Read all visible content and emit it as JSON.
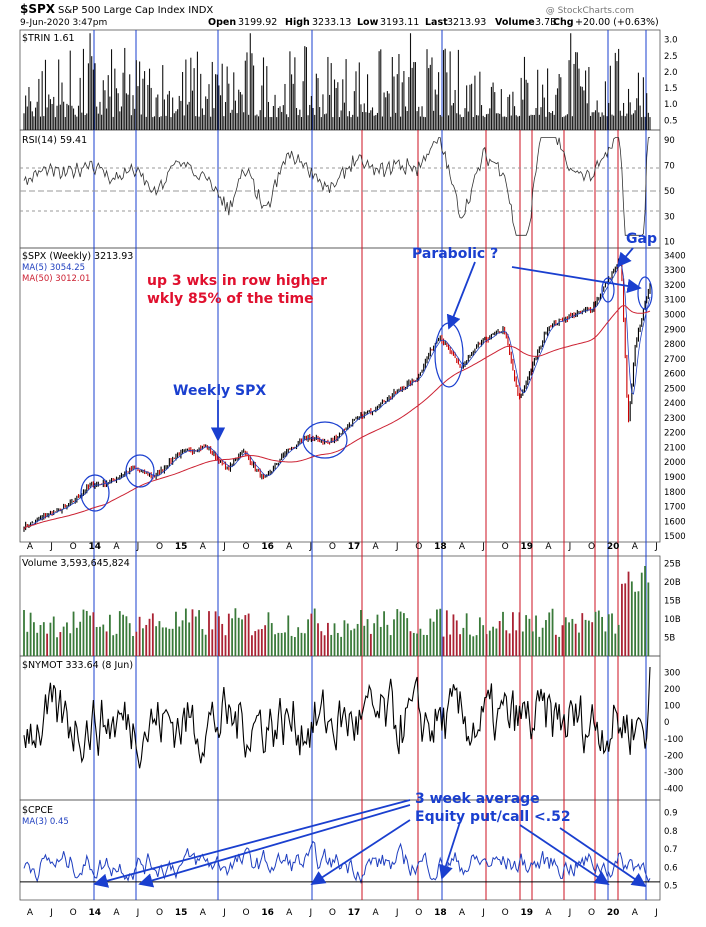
{
  "header": {
    "symbol": "$SPX",
    "name": "S&P 500 Large Cap Index INDX",
    "date": "9-Jun-2020 3:47pm",
    "open_label": "Open",
    "open": "3199.92",
    "high_label": "High",
    "high": "3233.13",
    "low_label": "Low",
    "low": "3193.11",
    "last_label": "Last",
    "last": "3213.93",
    "volume_label": "Volume",
    "volume": "3.7B",
    "chg_label": "Chg",
    "chg": "+20.00 (+0.63%)",
    "watermark": "@ StockCharts.com"
  },
  "panels": {
    "trin": {
      "label": "$TRIN 1.61"
    },
    "rsi": {
      "label": "RSI(14) 59.41"
    },
    "price": {
      "label": "$SPX (Weekly) 3213.93",
      "ma5": "MA(5) 3054.25",
      "ma50": "MA(50) 3012.01"
    },
    "volume": {
      "label": "Volume 3,593,645,824"
    },
    "nymot": {
      "label": "$NYMOT 333.64 (8 Jun)"
    },
    "cpce": {
      "label": "$CPCE",
      "ma3": "MA(3) 0.45"
    }
  },
  "annotations": {
    "stat1": "up 3 wks in row higher",
    "stat2": "wkly 85% of the time",
    "weekly": "Weekly SPX",
    "parabolic": "Parabolic ?",
    "gap": "Gap",
    "avg1": "3 week average",
    "avg2": "Equity put/call <.52"
  },
  "colors": {
    "price_up": "#000000",
    "price_down": "#cc0000",
    "ma5": "#1f3fbf",
    "ma50": "#cc2233",
    "annotation": "#1a3fcf",
    "stat_text": "#e0102e",
    "vline_blue": "#1a3fcf",
    "vline_red": "#cc1122",
    "vol_up": "#3a7a3a",
    "vol_down": "#aa2233"
  },
  "chart_data": {
    "type": "line",
    "x_tick_labels": [
      "A",
      "J",
      "O",
      "14",
      "A",
      "J",
      "O",
      "15",
      "A",
      "J",
      "O",
      "16",
      "A",
      "J",
      "O",
      "17",
      "A",
      "J",
      "O",
      "18",
      "A",
      "J",
      "O",
      "19",
      "A",
      "J",
      "O",
      "20",
      "A",
      "J"
    ],
    "panels": [
      {
        "name": "$TRIN",
        "y_ticks": [
          0.5,
          1.0,
          1.5,
          2.0,
          2.5,
          3.0
        ],
        "last": 1.61
      },
      {
        "name": "RSI(14)",
        "y_ticks": [
          10,
          30,
          50,
          70,
          90
        ],
        "last": 59.41
      },
      {
        "name": "$SPX (Weekly)",
        "y_ticks": [
          1500,
          1600,
          1700,
          1800,
          1900,
          2000,
          2100,
          2200,
          2300,
          2400,
          2500,
          2600,
          2700,
          2800,
          2900,
          3000,
          3100,
          3200,
          3300,
          3400
        ],
        "series": [
          {
            "name": "$SPX (Weekly)",
            "x": [
              "2013-04",
              "2013-07",
              "2013-10",
              "2014-01",
              "2014-04",
              "2014-07",
              "2014-10",
              "2015-01",
              "2015-05",
              "2015-08",
              "2015-10",
              "2016-01",
              "2016-04",
              "2016-07",
              "2016-10",
              "2017-01",
              "2017-04",
              "2017-07",
              "2017-10",
              "2018-01",
              "2018-04",
              "2018-07",
              "2018-10",
              "2018-12",
              "2019-04",
              "2019-07",
              "2019-10",
              "2020-02",
              "2020-03",
              "2020-04",
              "2020-06"
            ],
            "values": [
              1560,
              1640,
              1700,
              1840,
              1870,
              1960,
              1900,
              2050,
              2110,
              1950,
              2080,
              1880,
              2070,
              2170,
              2130,
              2270,
              2360,
              2470,
              2570,
              2860,
              2640,
              2820,
              2900,
              2420,
              2920,
              2990,
              3040,
              3380,
              2240,
              2800,
              3214
            ]
          },
          {
            "name": "MA(5)",
            "last": 3054.25
          },
          {
            "name": "MA(50)",
            "last": 3012.01
          }
        ]
      },
      {
        "name": "Volume",
        "y_ticks": [
          "5B",
          "10B",
          "15B",
          "20B",
          "25B"
        ],
        "last": 3593645824
      },
      {
        "name": "$NYMOT",
        "y_ticks": [
          -400,
          -300,
          -200,
          -100,
          0,
          100,
          200,
          300
        ],
        "last": 333.64
      },
      {
        "name": "$CPCE",
        "y_ticks": [
          0.5,
          0.6,
          0.7,
          0.8,
          0.9
        ],
        "ma3_last": 0.45
      }
    ]
  }
}
